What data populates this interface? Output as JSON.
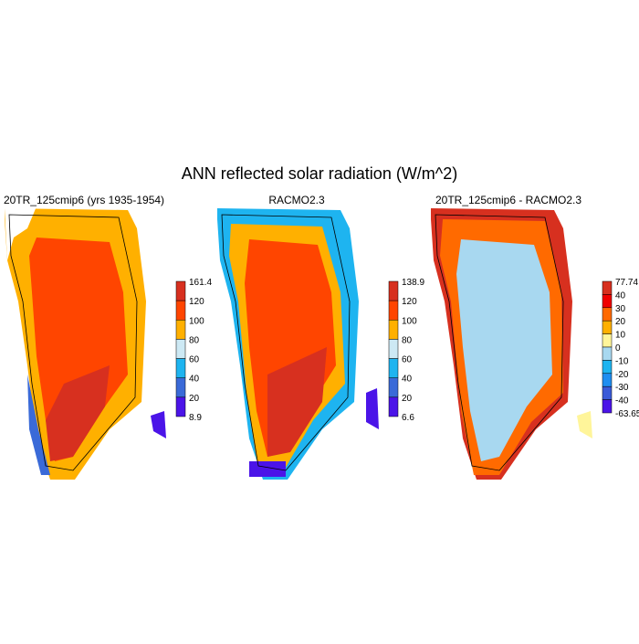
{
  "title": "ANN reflected solar radiation (W/m^2)",
  "panels": [
    {
      "title": "20TR_125cmip6 (yrs 1935-1954)",
      "colorbar": {
        "labels": [
          "161.4",
          "120",
          "100",
          "80",
          "60",
          "40",
          "20",
          "8.9"
        ],
        "colors": [
          "#d7301f",
          "#ff4500",
          "#ffb000",
          "#cde9f4",
          "#1eb4f0",
          "#3a6ad8",
          "#4b14e8"
        ]
      }
    },
    {
      "title": "RACMO2.3",
      "colorbar": {
        "labels": [
          "138.9",
          "120",
          "100",
          "80",
          "60",
          "40",
          "20",
          "6.6"
        ],
        "colors": [
          "#d7301f",
          "#ff4500",
          "#ffb000",
          "#cde9f4",
          "#1eb4f0",
          "#3a6ad8",
          "#4b14e8"
        ]
      }
    },
    {
      "title": "20TR_125cmip6 - RACMO2.3",
      "colorbar": {
        "labels": [
          "77.74",
          "40",
          "30",
          "20",
          "10",
          "0",
          "-10",
          "-20",
          "-30",
          "-40",
          "-63.65"
        ],
        "colors": [
          "#d7301f",
          "#f00000",
          "#ff6a00",
          "#ffb000",
          "#fff59a",
          "#a8d8f0",
          "#1eb4f0",
          "#1f8ef0",
          "#3a5ad8",
          "#4b14e8"
        ]
      }
    }
  ]
}
